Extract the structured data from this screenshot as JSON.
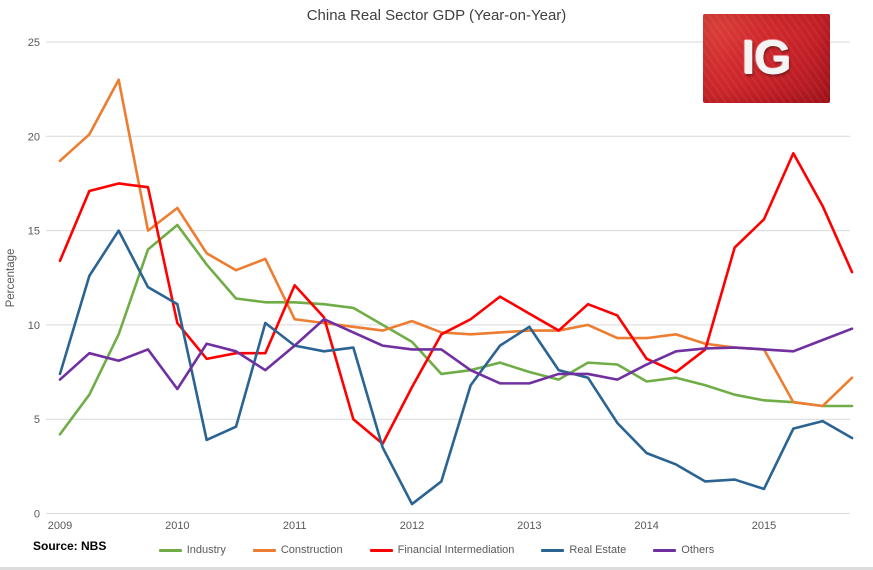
{
  "title": "China Real Sector GDP (Year-on-Year)",
  "logo": {
    "text": "IG",
    "background": "#c01e26"
  },
  "source": "Source: NBS",
  "axis": {
    "y_label": "Percentage",
    "y_ticks": [
      0,
      5,
      10,
      15,
      20,
      25
    ],
    "x_tick_labels": [
      "2009",
      "2010",
      "2011",
      "2012",
      "2013",
      "2014",
      "2015"
    ]
  },
  "style": {
    "gridline_color": "#d9d9d9",
    "tick_label_color": "#595959",
    "title_color": "#404040"
  },
  "chart_data": {
    "type": "line",
    "title": "China Real Sector GDP (Year-on-Year)",
    "xlabel": "",
    "ylabel": "Percentage",
    "ylim": [
      0,
      25
    ],
    "grid": "horizontal",
    "legend_position": "bottom",
    "x_unit": "quarter",
    "x_start": "2009Q1",
    "x_end": "2015Q4",
    "x_tick_labels": [
      "2009",
      "2010",
      "2011",
      "2012",
      "2013",
      "2014",
      "2015"
    ],
    "series": [
      {
        "name": "Industry",
        "color": "#70ad47",
        "values": [
          4.2,
          6.3,
          9.5,
          14.0,
          15.3,
          13.2,
          11.4,
          11.2,
          11.2,
          11.1,
          10.9,
          10.0,
          9.1,
          7.4,
          7.6,
          8.0,
          7.5,
          7.1,
          8.0,
          7.9,
          7.0,
          7.2,
          6.8,
          6.3,
          6.0,
          5.9,
          5.7,
          5.7
        ]
      },
      {
        "name": "Construction",
        "color": "#ed7d31",
        "values": [
          18.7,
          20.1,
          23.0,
          15.0,
          16.2,
          13.8,
          12.9,
          13.5,
          10.3,
          10.1,
          9.9,
          9.7,
          10.2,
          9.6,
          9.5,
          9.6,
          9.7,
          9.7,
          10.0,
          9.3,
          9.3,
          9.5,
          9.0,
          8.8,
          8.7,
          5.9,
          5.7,
          7.2
        ]
      },
      {
        "name": "Financial Intermediation",
        "color": "#ff0000",
        "values": [
          13.4,
          17.1,
          17.5,
          17.3,
          10.1,
          8.2,
          8.5,
          8.5,
          12.1,
          10.4,
          5.0,
          3.7,
          6.7,
          9.5,
          10.3,
          11.5,
          10.6,
          9.7,
          11.1,
          10.5,
          8.2,
          7.5,
          8.7,
          14.1,
          15.6,
          19.1,
          16.3,
          12.8
        ]
      },
      {
        "name": "Real Estate",
        "color": "#2b6492",
        "values": [
          7.4,
          12.6,
          15.0,
          12.0,
          11.1,
          3.9,
          4.6,
          10.1,
          8.9,
          8.6,
          8.8,
          3.5,
          0.5,
          1.7,
          6.8,
          8.9,
          9.9,
          7.6,
          7.2,
          4.8,
          3.2,
          2.6,
          1.7,
          1.8,
          1.3,
          4.5,
          4.9,
          4.0
        ]
      },
      {
        "name": "Others",
        "color": "#7030a0",
        "values": [
          7.1,
          8.5,
          8.1,
          8.7,
          6.6,
          9.0,
          8.6,
          7.6,
          8.9,
          10.3,
          9.6,
          8.9,
          8.7,
          8.7,
          7.6,
          6.9,
          6.9,
          7.4,
          7.4,
          7.1,
          7.9,
          8.6,
          8.75,
          8.8,
          8.7,
          8.6,
          9.2,
          9.8
        ]
      }
    ]
  }
}
